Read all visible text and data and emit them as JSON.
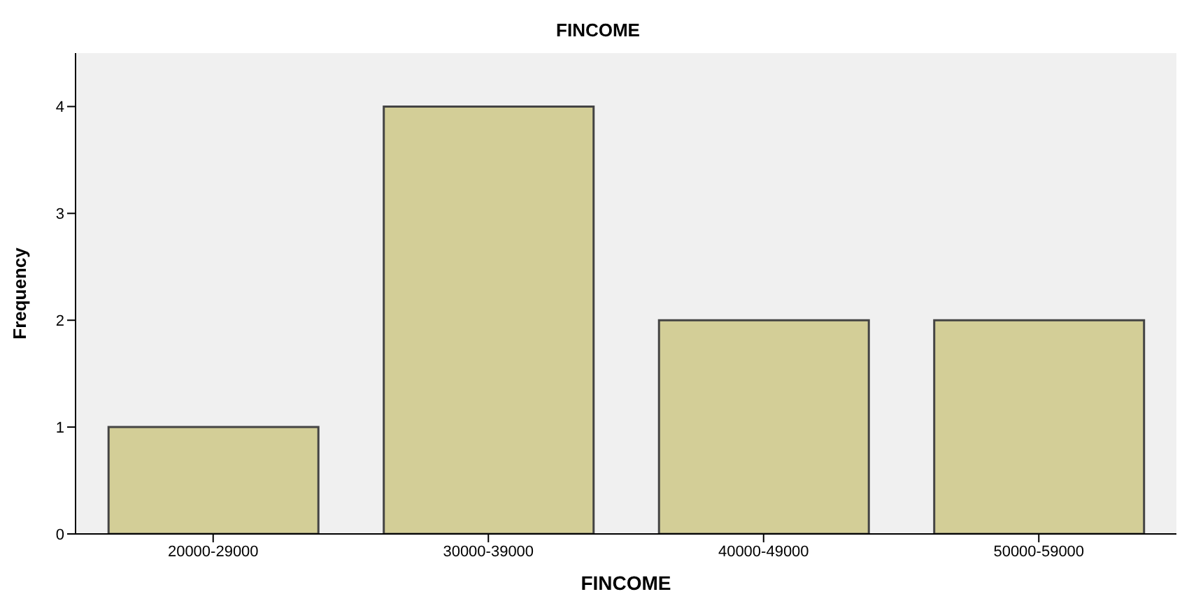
{
  "chart_data": {
    "type": "bar",
    "title": "FINCOME",
    "xlabel": "FINCOME",
    "ylabel": "Frequency",
    "categories": [
      "20000-29000",
      "30000-39000",
      "40000-49000",
      "50000-59000"
    ],
    "values": [
      1,
      4,
      2,
      2
    ],
    "color": "#d3ce97",
    "ylim": [
      0,
      4.5
    ],
    "yticks": [
      0,
      1,
      2,
      3,
      4
    ]
  }
}
